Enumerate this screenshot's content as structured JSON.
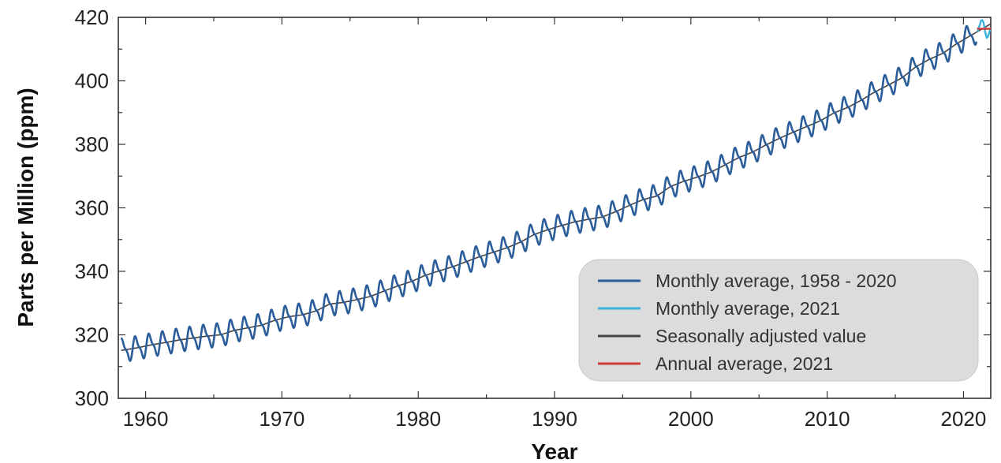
{
  "chart_data": {
    "type": "line",
    "title": "",
    "xlabel": "Year",
    "ylabel": "Parts per Million (ppm)",
    "xlim": [
      1958,
      2022
    ],
    "ylim": [
      300,
      420
    ],
    "x_ticks": [
      1960,
      1970,
      1980,
      1990,
      2000,
      2010,
      2020
    ],
    "y_ticks": [
      300,
      320,
      340,
      360,
      380,
      400,
      420
    ],
    "grid": false,
    "legend_position": "bottom-right",
    "series": [
      {
        "name": "Monthly average, 1958 - 2020",
        "color": "#2a5d9a",
        "style": "seasonal-monthly",
        "x_start": 1958.2,
        "x_end": 2020.96,
        "annual_x": [
          1958,
          1959,
          1960,
          1961,
          1962,
          1963,
          1964,
          1965,
          1966,
          1967,
          1968,
          1969,
          1970,
          1971,
          1972,
          1973,
          1974,
          1975,
          1976,
          1977,
          1978,
          1979,
          1980,
          1981,
          1982,
          1983,
          1984,
          1985,
          1986,
          1987,
          1988,
          1989,
          1990,
          1991,
          1992,
          1993,
          1994,
          1995,
          1996,
          1997,
          1998,
          1999,
          2000,
          2001,
          2002,
          2003,
          2004,
          2005,
          2006,
          2007,
          2008,
          2009,
          2010,
          2011,
          2012,
          2013,
          2014,
          2015,
          2016,
          2017,
          2018,
          2019,
          2020
        ],
        "annual_y": [
          315.3,
          316.0,
          316.9,
          317.6,
          318.4,
          319.0,
          319.6,
          320.0,
          321.4,
          322.2,
          323.0,
          324.6,
          325.7,
          326.3,
          327.5,
          329.7,
          330.2,
          331.1,
          332.1,
          333.8,
          335.4,
          336.8,
          338.7,
          340.1,
          341.4,
          343.0,
          344.6,
          346.0,
          347.4,
          349.2,
          351.6,
          353.1,
          354.4,
          355.6,
          356.4,
          357.1,
          358.8,
          360.8,
          362.6,
          363.7,
          366.7,
          368.4,
          369.7,
          371.3,
          373.5,
          375.8,
          377.5,
          379.8,
          381.9,
          383.8,
          385.6,
          387.4,
          389.9,
          391.6,
          393.9,
          396.5,
          398.7,
          401.0,
          404.4,
          406.8,
          408.7,
          411.7,
          414.2
        ],
        "seasonal_amplitude_ppm": 3.2
      },
      {
        "name": "Monthly average, 2021",
        "color": "#3bb3dd",
        "x": [
          2021.04,
          2021.12,
          2021.21,
          2021.29,
          2021.38,
          2021.46,
          2021.54,
          2021.62,
          2021.71,
          2021.79,
          2021.88,
          2021.96
        ],
        "y": [
          415.5,
          416.8,
          417.7,
          419.0,
          419.1,
          418.5,
          416.8,
          414.8,
          413.6,
          413.9,
          415.1,
          416.2
        ]
      },
      {
        "name": "Seasonally adjusted value",
        "color": "#444444",
        "style": "smooth-trend"
      },
      {
        "name": "Annual average, 2021",
        "color": "#cc3b3b",
        "x": [
          2021,
          2022
        ],
        "y": [
          416.4,
          416.4
        ]
      }
    ]
  }
}
